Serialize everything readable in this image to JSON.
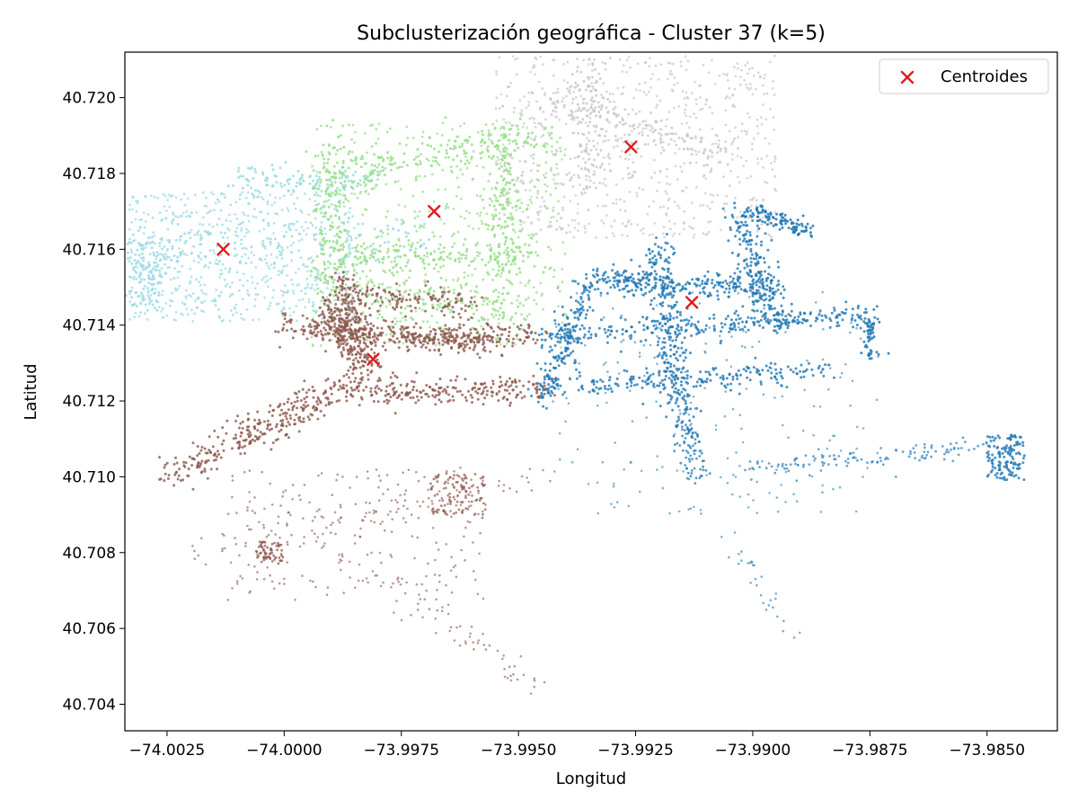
{
  "chart_data": {
    "type": "scatter",
    "title": "Subclusterización geográfica - Cluster 37 (k=5)",
    "xlabel": "Longitud",
    "ylabel": "Latitud",
    "xlim": [
      -74.0034,
      -73.9835
    ],
    "ylim": [
      40.7033,
      40.7212
    ],
    "x_ticks": [
      -74.0025,
      -74.0,
      -73.9975,
      -73.995,
      -73.9925,
      -73.99,
      -73.9875,
      -73.985
    ],
    "x_tick_labels": [
      "−74.0025",
      "−74.0000",
      "−73.9975",
      "−73.9950",
      "−73.9925",
      "−73.9900",
      "−73.9875",
      "−73.9850"
    ],
    "y_ticks": [
      40.704,
      40.706,
      40.708,
      40.71,
      40.712,
      40.714,
      40.716,
      40.718,
      40.72
    ],
    "y_tick_labels": [
      "40.704",
      "40.706",
      "40.708",
      "40.710",
      "40.712",
      "40.714",
      "40.716",
      "40.718",
      "40.720"
    ],
    "grid": false,
    "legend": {
      "position": "top-right",
      "entries": [
        "Centroides"
      ]
    },
    "series": [
      {
        "color": "#9edae5",
        "centroid": [
          -74.0013,
          40.716
        ]
      },
      {
        "color": "#98df8a",
        "centroid": [
          -73.9968,
          40.717
        ]
      },
      {
        "color": "#c7c7c7",
        "centroid": [
          -73.9926,
          40.7187
        ]
      },
      {
        "color": "#1f77b4",
        "centroid": [
          -73.9913,
          40.7146
        ]
      },
      {
        "color": "#8c564b",
        "centroid": [
          -73.9981,
          40.7131
        ]
      }
    ],
    "centroids": {
      "name": "Centroides",
      "marker": "x",
      "color": "#e41a1c",
      "points": [
        [
          -74.0013,
          40.716
        ],
        [
          -73.9968,
          40.717
        ],
        [
          -73.9926,
          40.7187
        ],
        [
          -73.9913,
          40.7146
        ],
        [
          -73.9981,
          40.7131
        ]
      ]
    }
  }
}
